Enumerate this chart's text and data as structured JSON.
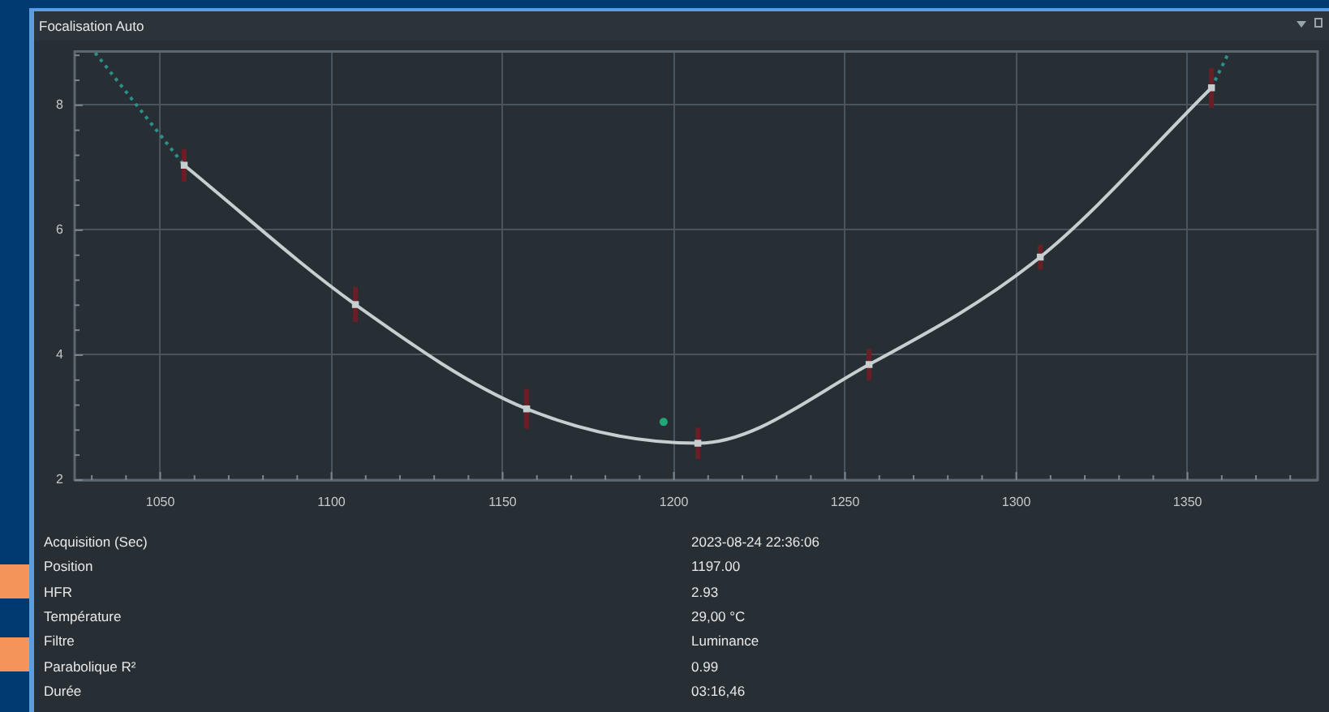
{
  "chart_data": {
    "type": "line",
    "title": "Focalisation Auto",
    "x": [
      1057,
      1107,
      1157,
      1207,
      1257,
      1307,
      1357
    ],
    "xlim": [
      1025,
      1388
    ],
    "xticks": [
      {
        "value": 1030,
        "label": null
      },
      {
        "value": 1040,
        "label": null
      },
      1050,
      {
        "value": 1060,
        "label": null
      },
      {
        "value": 1070,
        "label": null
      },
      {
        "value": 1080,
        "label": null
      },
      {
        "value": 1090,
        "label": null
      },
      1100,
      {
        "value": 1110,
        "label": null
      },
      {
        "value": 1120,
        "label": null
      },
      {
        "value": 1130,
        "label": null
      },
      {
        "value": 1140,
        "label": null
      },
      1150,
      {
        "value": 1160,
        "label": null
      },
      {
        "value": 1170,
        "label": null
      },
      {
        "value": 1180,
        "label": null
      },
      {
        "value": 1190,
        "label": null
      },
      1200,
      {
        "value": 1210,
        "label": null
      },
      {
        "value": 1220,
        "label": null
      },
      {
        "value": 1230,
        "label": null
      },
      {
        "value": 1240,
        "label": null
      },
      1250,
      {
        "value": 1260,
        "label": null
      },
      {
        "value": 1270,
        "label": null
      },
      {
        "value": 1280,
        "label": null
      },
      {
        "value": 1290,
        "label": null
      },
      1300,
      {
        "value": 1310,
        "label": null
      },
      {
        "value": 1320,
        "label": null
      },
      {
        "value": 1330,
        "label": null
      },
      {
        "value": 1340,
        "label": null
      },
      1350,
      {
        "value": 1360,
        "label": null
      },
      {
        "value": 1370,
        "label": null
      },
      {
        "value": 1380,
        "label": null
      }
    ],
    "ylim": [
      2,
      8.86
    ],
    "yticks": [
      2,
      {
        "value": 2.4,
        "label": null
      },
      {
        "value": 2.8,
        "label": null
      },
      {
        "value": 3.2,
        "label": null
      },
      {
        "value": 3.6,
        "label": null
      },
      4,
      {
        "value": 4.4,
        "label": null
      },
      {
        "value": 4.8,
        "label": null
      },
      {
        "value": 5.2,
        "label": null
      },
      {
        "value": 5.6,
        "label": null
      },
      6,
      {
        "value": 6.4,
        "label": null
      },
      {
        "value": 6.8,
        "label": null
      },
      {
        "value": 7.2,
        "label": null
      },
      {
        "value": 7.6,
        "label": null
      },
      8,
      {
        "value": 8.4,
        "label": null
      },
      {
        "value": 8.8,
        "label": null
      }
    ],
    "grid": true,
    "marker": "square",
    "line_style": "solid",
    "series": [
      {
        "color": "#c5cfcf",
        "values": [
          7.04,
          4.81,
          3.14,
          2.59,
          3.85,
          5.57,
          8.28
        ],
        "errors": [
          0.26,
          0.28,
          0.32,
          0.25,
          0.25,
          0.2,
          0.32
        ]
      },
      {
        "type": "line",
        "x": [
          1031,
          1057
        ],
        "values": [
          8.84,
          7.04
        ],
        "color": "#2e8f8a",
        "line_style": "dotted",
        "marker": "none"
      },
      {
        "type": "line",
        "x": [
          1357,
          1362
        ],
        "values": [
          8.28,
          8.84
        ],
        "color": "#2e8f8a",
        "line_style": "dotted",
        "marker": "none"
      },
      {
        "type": "scatter",
        "x": [
          1197
        ],
        "values": [
          2.93
        ],
        "color": "#22a67a",
        "marker": "circle"
      }
    ],
    "annotations": [
      "Acquisition (Sec)",
      "2023-08-24 22:36:06",
      "Position",
      "1197.00",
      "HFR",
      "2.93",
      "Température",
      "29,00 °C",
      "Filtre",
      "Luminance",
      "Parabolique R²",
      "0.99",
      "Durée",
      "03:16,46"
    ]
  }
}
